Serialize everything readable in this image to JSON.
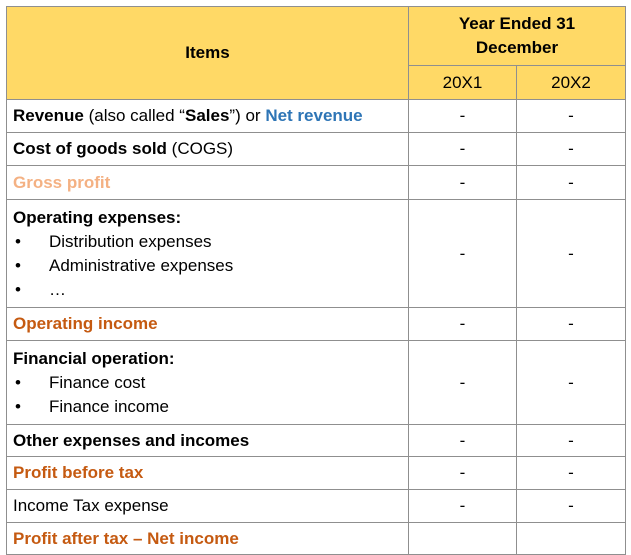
{
  "header": {
    "items_label": "Items",
    "period_label": "Year Ended 31 December",
    "years": [
      "20X1",
      "20X2"
    ]
  },
  "rows": {
    "revenue": {
      "label_1": "Revenue",
      "label_2": " (also called “",
      "label_3": "Sales",
      "label_4": "”) or ",
      "label_5": "Net revenue",
      "v1": "-",
      "v2": "-"
    },
    "cogs": {
      "label_1": "Cost of goods sold",
      "label_2": " (COGS)",
      "v1": "-",
      "v2": "-"
    },
    "gross_profit": {
      "label": "Gross profit",
      "v1": "-",
      "v2": "-"
    },
    "operating_expenses": {
      "label": "Operating expenses:",
      "items": [
        "Distribution expenses",
        "Administrative expenses",
        "…"
      ],
      "v1": "-",
      "v2": "-"
    },
    "operating_income": {
      "label": "Operating income",
      "v1": "-",
      "v2": "-"
    },
    "financial_operation": {
      "label": "Financial operation:",
      "items": [
        "Finance cost",
        "Finance income"
      ],
      "v1": "-",
      "v2": "-"
    },
    "other": {
      "label": "Other expenses and incomes",
      "v1": "-",
      "v2": "-"
    },
    "profit_before_tax": {
      "label": "Profit before tax",
      "v1": "-",
      "v2": "-"
    },
    "income_tax": {
      "label": "Income Tax expense",
      "v1": "-",
      "v2": "-"
    },
    "profit_after_tax": {
      "label": "Profit after tax – Net income",
      "v1": "",
      "v2": ""
    }
  },
  "colors": {
    "header_bg": "#ffd966",
    "blue": "#2e75b6",
    "peach": "#f4b183",
    "orange": "#c55a11"
  }
}
